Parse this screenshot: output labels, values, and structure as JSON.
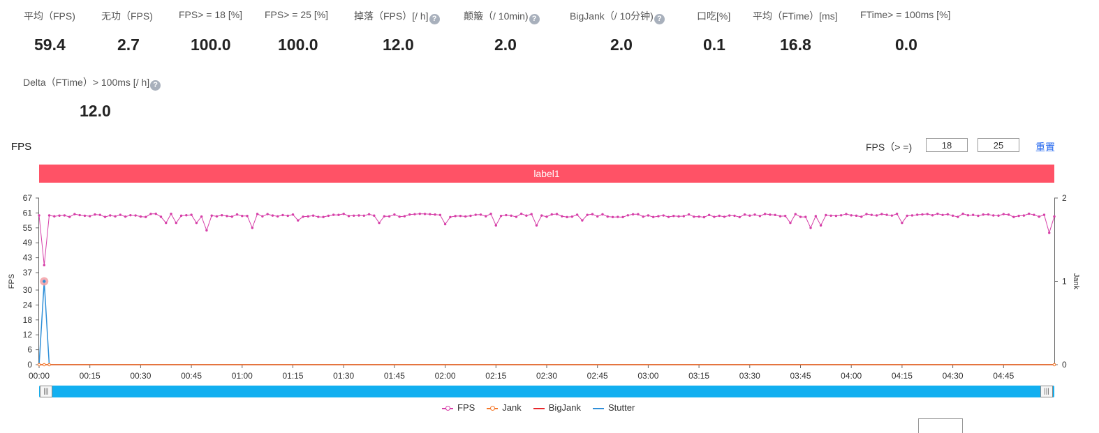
{
  "metrics_row1": [
    {
      "label": "平均（FPS)",
      "value": "59.4",
      "help": false
    },
    {
      "label": "无功（FPS)",
      "value": "2.7",
      "help": false
    },
    {
      "label": "FPS> = 18 [%]",
      "value": "100.0",
      "help": false
    },
    {
      "label": "FPS> = 25 [%]",
      "value": "100.0",
      "help": false
    },
    {
      "label": "掉落（FPS）[/ h]",
      "value": "12.0",
      "help": true
    },
    {
      "label": "颠簸（/ 10min)",
      "value": "2.0",
      "help": true
    },
    {
      "label": "BigJank（/ 10分钟)",
      "value": "2.0",
      "help": true
    },
    {
      "label": "口吃[%]",
      "value": "0.1",
      "help": false
    },
    {
      "label": "平均（FTime）[ms]",
      "value": "16.8",
      "help": false
    },
    {
      "label": "FTime> = 100ms [%]",
      "value": "0.0",
      "help": false
    }
  ],
  "metrics_row2": [
    {
      "label": "Delta（FTime）> 100ms [/ h]",
      "value": "12.0",
      "help": true
    }
  ],
  "help_glyph": "?",
  "chart_section": {
    "title": "FPS",
    "threshold_label": "FPS（> =)",
    "threshold_low": "18",
    "threshold_high": "25",
    "reset_label": "重置",
    "band_label": "label1",
    "zoom_handle_glyph": "|||",
    "accent_colors": {
      "band": "#ff5266",
      "zoom": "#12aff0",
      "link": "#2266ee"
    }
  },
  "chart_data": {
    "type": "line",
    "ylabel": "FPS",
    "y2label": "Jank",
    "ylim": [
      0,
      67
    ],
    "yticks": [
      0,
      6,
      12,
      18,
      24,
      30,
      37,
      43,
      49,
      55,
      61,
      67
    ],
    "y2lim": [
      0,
      2
    ],
    "y2ticks": [
      0,
      1,
      2
    ],
    "xlim_seconds": [
      0,
      300
    ],
    "xticks": [
      "00:00",
      "00:15",
      "00:30",
      "00:45",
      "01:00",
      "01:15",
      "01:30",
      "01:45",
      "02:00",
      "02:15",
      "02:30",
      "02:45",
      "03:00",
      "03:15",
      "03:30",
      "03:45",
      "04:00",
      "04:15",
      "04:30",
      "04:45"
    ],
    "grid": false,
    "legend_position": "bottom",
    "series": [
      {
        "name": "FPS",
        "color": "#d63fa8",
        "axis": "left",
        "marker": "circle",
        "x_start": 0,
        "x_step": 1.5,
        "baseline": 60,
        "wobble": 0.7,
        "dips": [
          [
            1.5,
            40
          ],
          [
            3,
            60
          ],
          [
            37.5,
            57
          ],
          [
            40.5,
            57
          ],
          [
            46.5,
            57
          ],
          [
            49.5,
            54
          ],
          [
            63,
            55
          ],
          [
            76.5,
            58
          ],
          [
            100.5,
            57
          ],
          [
            120,
            56.5
          ],
          [
            135,
            56
          ],
          [
            147,
            56
          ],
          [
            160.5,
            58
          ],
          [
            222,
            57
          ],
          [
            228,
            55
          ],
          [
            231,
            56
          ],
          [
            255,
            57
          ],
          [
            295,
            56
          ],
          [
            298.5,
            53
          ]
        ]
      },
      {
        "name": "Jank",
        "color": "#f5782a",
        "axis": "right",
        "marker": "circle",
        "x": [
          0,
          1.5,
          3,
          300
        ],
        "values": [
          0,
          0,
          0,
          0
        ]
      },
      {
        "name": "BigJank",
        "color": "#e8272b",
        "axis": "right",
        "marker": "none",
        "x": [
          0,
          300
        ],
        "values": [
          0,
          0
        ]
      },
      {
        "name": "Stutter",
        "color": "#2f8fd8",
        "axis": "right",
        "marker": "none",
        "x": [
          0,
          1.5,
          3,
          300
        ],
        "values": [
          0,
          1,
          0,
          0
        ]
      }
    ],
    "highlight": {
      "x": 1.5,
      "value": 1
    }
  }
}
